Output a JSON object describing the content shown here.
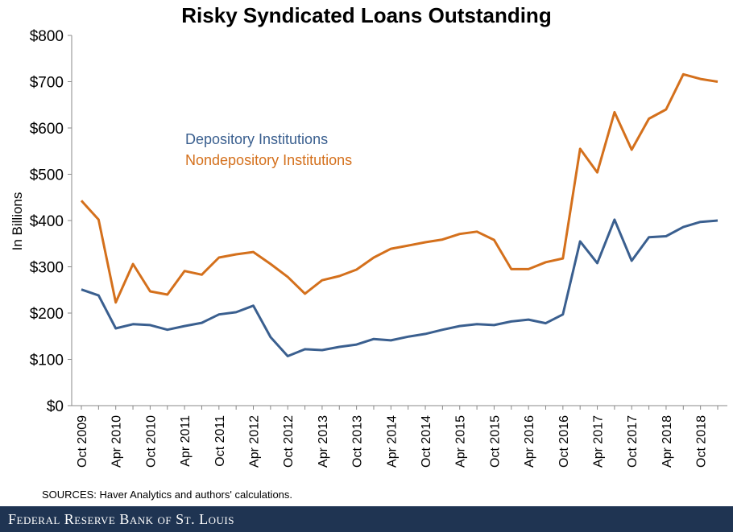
{
  "footer": {
    "brand": "Federal Reserve Bank of St. Louis"
  },
  "source": "SOURCES: Haver Analytics and authors' calculations.",
  "chart_data": {
    "type": "line",
    "title": "Risky Syndicated Loans Outstanding",
    "ylabel": "In Billions",
    "xlabel": "",
    "ylim": [
      0,
      800
    ],
    "yticks": [
      "$0",
      "$100",
      "$200",
      "$300",
      "$400",
      "$500",
      "$600",
      "$700",
      "$800"
    ],
    "ytick_values": [
      0,
      100,
      200,
      300,
      400,
      500,
      600,
      700,
      800
    ],
    "grid": false,
    "legend_position": "upper-left (inside plot)",
    "x": [
      "Oct 2009",
      "Jan 2010",
      "Apr 2010",
      "Jul 2010",
      "Oct 2010",
      "Jan 2011",
      "Apr 2011",
      "Jul 2011",
      "Oct 2011",
      "Jan 2012",
      "Apr 2012",
      "Jul 2012",
      "Oct 2012",
      "Jan 2013",
      "Apr 2013",
      "Jul 2013",
      "Oct 2013",
      "Jan 2014",
      "Apr 2014",
      "Jul 2014",
      "Oct 2014",
      "Jan 2015",
      "Apr 2015",
      "Jul 2015",
      "Oct 2015",
      "Jan 2016",
      "Apr 2016",
      "Jul 2016",
      "Oct 2016",
      "Jan 2017",
      "Apr 2017",
      "Jul 2017",
      "Oct 2017",
      "Jan 2018",
      "Apr 2018",
      "Jul 2018",
      "Oct 2018",
      "Jan 2019"
    ],
    "xtick_labels": [
      "Oct 2009",
      "Apr 2010",
      "Oct 2010",
      "Apr 2011",
      "Oct 2011",
      "Apr 2012",
      "Oct 2012",
      "Apr 2013",
      "Oct 2013",
      "Apr 2014",
      "Oct 2014",
      "Apr 2015",
      "Oct 2015",
      "Apr 2016",
      "Oct 2016",
      "Apr 2017",
      "Oct 2017",
      "Apr 2018",
      "Oct 2018"
    ],
    "series": [
      {
        "name": "Depository Institutions",
        "color": "#3a5f8f",
        "values": [
          251,
          238,
          167,
          176,
          174,
          164,
          172,
          179,
          197,
          202,
          216,
          148,
          107,
          122,
          120,
          127,
          132,
          144,
          141,
          149,
          155,
          164,
          172,
          176,
          174,
          182,
          186,
          178,
          197,
          355,
          308,
          402,
          313,
          364,
          366,
          386,
          397,
          400
        ]
      },
      {
        "name": "Nondepository Institutions",
        "color": "#d4701c",
        "values": [
          443,
          402,
          223,
          306,
          247,
          240,
          291,
          283,
          320,
          327,
          332,
          306,
          278,
          242,
          271,
          280,
          294,
          320,
          339,
          346,
          353,
          359,
          371,
          376,
          358,
          295,
          295,
          310,
          318,
          555,
          504,
          634,
          553,
          620,
          640,
          716,
          706,
          700
        ]
      }
    ]
  }
}
